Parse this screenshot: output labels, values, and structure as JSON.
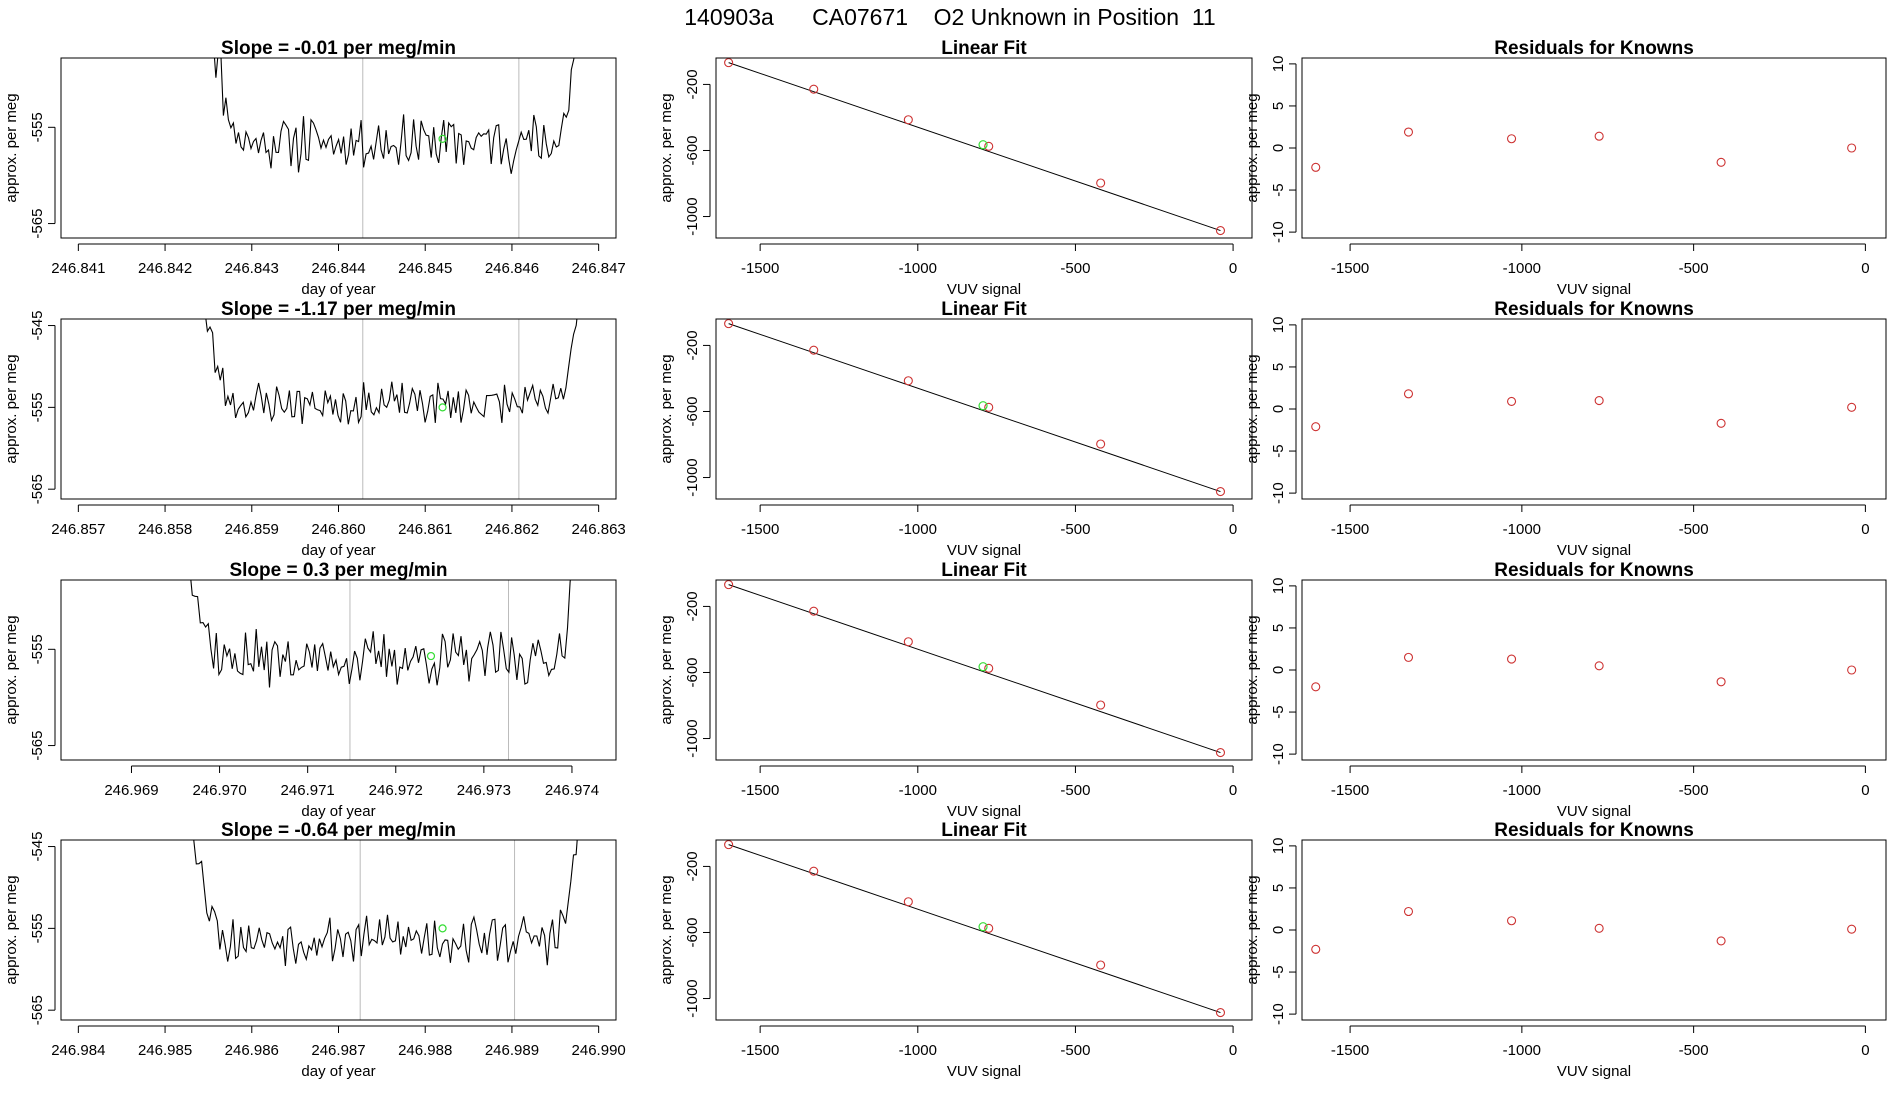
{
  "figure_title": "140903a      CA07671    O2 Unknown in Position  11",
  "colors": {
    "line": "#000000",
    "known_point": "#cd3333",
    "unknown_point": "#33dd33",
    "vline": "#bbbbbb"
  },
  "chart_data": [
    {
      "type": "line",
      "panel": "r1-time",
      "title": "Slope =  -0.01  per meg/min",
      "xlabel": "day of year",
      "ylabel": "approx. per meg",
      "xlim": [
        246.8408,
        246.8472
      ],
      "ylim": [
        -566.5,
        -547.8
      ],
      "xticks": [
        246.841,
        246.842,
        246.843,
        246.844,
        246.845,
        246.846,
        246.847
      ],
      "xtick_labels": [
        "246.841",
        "246.842",
        "246.843",
        "246.844",
        "246.845",
        "246.846",
        "246.847"
      ],
      "yticks": [
        -555,
        -565
      ],
      "ytick_labels": [
        "-555",
        "-565"
      ],
      "t_start": 246.8425,
      "t_end": 246.8468,
      "n_points": 150,
      "y_level": -556.5,
      "amplitude": 2.3,
      "seed": 11,
      "vlines": [
        246.84428,
        246.84608
      ],
      "unknown_point": {
        "x": 246.8452,
        "y": -556.2
      }
    },
    {
      "type": "scatter",
      "panel": "r1-fit",
      "title": "Linear Fit",
      "xlabel": "VUV signal",
      "ylabel": "approx. per meg",
      "xlim": [
        -1640,
        60
      ],
      "ylim": [
        -1130,
        -40
      ],
      "xticks": [
        -1500,
        -1000,
        -500,
        0
      ],
      "xtick_labels": [
        "-1500",
        "-1000",
        "-500",
        "0"
      ],
      "yticks": [
        -200,
        -600,
        -1000
      ],
      "ytick_labels": [
        "-200",
        "-600",
        "-1000"
      ],
      "knowns": {
        "x": [
          -1600,
          -1330,
          -1030,
          -775,
          -420,
          -40
        ],
        "y": [
          -68,
          -229,
          -414,
          -575,
          -797,
          -1085
        ]
      },
      "unknown_point": {
        "x": -793,
        "y": -565
      },
      "fit_line": {
        "x": [
          -1600,
          -40
        ],
        "y": [
          -68,
          -1085
        ]
      }
    },
    {
      "type": "scatter",
      "panel": "r1-resid",
      "title": "Residuals for Knowns",
      "xlabel": "VUV signal",
      "ylabel": "approx. per meg",
      "xlim": [
        -1640,
        60
      ],
      "ylim": [
        -10.7,
        10.7
      ],
      "xticks": [
        -1500,
        -1000,
        -500,
        0
      ],
      "xtick_labels": [
        "-1500",
        "-1000",
        "-500",
        "0"
      ],
      "yticks": [
        10,
        5,
        0,
        -5,
        -10
      ],
      "ytick_labels": [
        "10",
        "5",
        "0",
        "-5",
        "-10"
      ],
      "knowns": {
        "x": [
          -1600,
          -1330,
          -1030,
          -775,
          -420,
          -40
        ],
        "y": [
          -2.3,
          1.9,
          1.1,
          1.4,
          -1.7,
          0.0
        ]
      }
    },
    {
      "type": "line",
      "panel": "r2-time",
      "title": "Slope =  -1.17  per meg/min",
      "xlabel": "day of year",
      "ylabel": "approx. per meg",
      "xlim": [
        246.8568,
        246.8632
      ],
      "ylim": [
        -566.2,
        -544.2
      ],
      "xticks": [
        246.857,
        246.858,
        246.859,
        246.86,
        246.861,
        246.862,
        246.863
      ],
      "xtick_labels": [
        "246.857",
        "246.858",
        "246.859",
        "246.860",
        "246.861",
        "246.862",
        "246.863"
      ],
      "yticks": [
        -545,
        -555,
        -565
      ],
      "ytick_labels": [
        "-545",
        "-555",
        "-565"
      ],
      "t_start": 246.8584,
      "t_end": 246.8628,
      "n_points": 150,
      "y_level": -554.5,
      "amplitude": 2.0,
      "seed": 23,
      "vlines": [
        246.86028,
        246.86208
      ],
      "unknown_point": {
        "x": 246.8612,
        "y": -555.0
      }
    },
    {
      "type": "scatter",
      "panel": "r2-fit",
      "title": "Linear Fit",
      "xlabel": "VUV signal",
      "ylabel": "approx. per meg",
      "xlim": [
        -1640,
        60
      ],
      "ylim": [
        -1130,
        -40
      ],
      "xticks": [
        -1500,
        -1000,
        -500,
        0
      ],
      "xtick_labels": [
        "-1500",
        "-1000",
        "-500",
        "0"
      ],
      "yticks": [
        -200,
        -600,
        -1000
      ],
      "ytick_labels": [
        "-200",
        "-600",
        "-1000"
      ],
      "knowns": {
        "x": [
          -1600,
          -1330,
          -1030,
          -775,
          -420,
          -40
        ],
        "y": [
          -68,
          -229,
          -414,
          -575,
          -797,
          -1085
        ]
      },
      "unknown_point": {
        "x": -793,
        "y": -565
      },
      "fit_line": {
        "x": [
          -1600,
          -40
        ],
        "y": [
          -68,
          -1085
        ]
      }
    },
    {
      "type": "scatter",
      "panel": "r2-resid",
      "title": "Residuals for Knowns",
      "xlabel": "VUV signal",
      "ylabel": "approx. per meg",
      "xlim": [
        -1640,
        60
      ],
      "ylim": [
        -10.7,
        10.7
      ],
      "xticks": [
        -1500,
        -1000,
        -500,
        0
      ],
      "xtick_labels": [
        "-1500",
        "-1000",
        "-500",
        "0"
      ],
      "yticks": [
        10,
        5,
        0,
        -5,
        -10
      ],
      "ytick_labels": [
        "10",
        "5",
        "0",
        "-5",
        "-10"
      ],
      "knowns": {
        "x": [
          -1600,
          -1330,
          -1030,
          -775,
          -420,
          -40
        ],
        "y": [
          -2.1,
          1.8,
          0.9,
          1.0,
          -1.7,
          0.2
        ]
      }
    },
    {
      "type": "line",
      "panel": "r3-time",
      "title": "Slope =  0.3  per meg/min",
      "xlabel": "day of year",
      "ylabel": "approx. per meg",
      "xlim": [
        246.9682,
        246.9745
      ],
      "ylim": [
        -566.5,
        -547.8
      ],
      "xticks": [
        246.969,
        246.97,
        246.971,
        246.972,
        246.973,
        246.974
      ],
      "xtick_labels": [
        "246.969",
        "246.970",
        "246.971",
        "246.972",
        "246.973",
        "246.974"
      ],
      "yticks": [
        -555,
        -565
      ],
      "ytick_labels": [
        "-555",
        "-565"
      ],
      "t_start": 246.9696,
      "t_end": 246.9741,
      "n_points": 150,
      "y_level": -556.0,
      "amplitude": 2.2,
      "seed": 37,
      "vlines": [
        246.97148,
        246.97328
      ],
      "unknown_point": {
        "x": 246.9724,
        "y": -555.7
      }
    },
    {
      "type": "scatter",
      "panel": "r3-fit",
      "title": "Linear Fit",
      "xlabel": "VUV signal",
      "ylabel": "approx. per meg",
      "xlim": [
        -1640,
        60
      ],
      "ylim": [
        -1130,
        -40
      ],
      "xticks": [
        -1500,
        -1000,
        -500,
        0
      ],
      "xtick_labels": [
        "-1500",
        "-1000",
        "-500",
        "0"
      ],
      "yticks": [
        -200,
        -600,
        -1000
      ],
      "ytick_labels": [
        "-200",
        "-600",
        "-1000"
      ],
      "knowns": {
        "x": [
          -1600,
          -1330,
          -1030,
          -775,
          -420,
          -40
        ],
        "y": [
          -68,
          -229,
          -414,
          -575,
          -797,
          -1085
        ]
      },
      "unknown_point": {
        "x": -793,
        "y": -565
      },
      "fit_line": {
        "x": [
          -1600,
          -40
        ],
        "y": [
          -68,
          -1085
        ]
      }
    },
    {
      "type": "scatter",
      "panel": "r3-resid",
      "title": "Residuals for Knowns",
      "xlabel": "VUV signal",
      "ylabel": "approx. per meg",
      "xlim": [
        -1640,
        60
      ],
      "ylim": [
        -10.7,
        10.7
      ],
      "xticks": [
        -1500,
        -1000,
        -500,
        0
      ],
      "xtick_labels": [
        "-1500",
        "-1000",
        "-500",
        "0"
      ],
      "yticks": [
        10,
        5,
        0,
        -5,
        -10
      ],
      "ytick_labels": [
        "10",
        "5",
        "0",
        "-5",
        "-10"
      ],
      "knowns": {
        "x": [
          -1600,
          -1330,
          -1030,
          -775,
          -420,
          -40
        ],
        "y": [
          -2.0,
          1.5,
          1.3,
          0.5,
          -1.4,
          0.0
        ]
      }
    },
    {
      "type": "line",
      "panel": "r4-time",
      "title": "Slope =  -0.64  per meg/min",
      "xlabel": "day of year",
      "ylabel": "approx. per meg",
      "xlim": [
        246.9838,
        246.9902
      ],
      "ylim": [
        -566.2,
        -544.2
      ],
      "xticks": [
        246.984,
        246.985,
        246.986,
        246.987,
        246.988,
        246.989,
        246.99
      ],
      "xtick_labels": [
        "246.984",
        "246.985",
        "246.986",
        "246.987",
        "246.988",
        "246.989",
        "246.990"
      ],
      "yticks": [
        -545,
        -555,
        -565
      ],
      "ytick_labels": [
        "-545",
        "-555",
        "-565"
      ],
      "t_start": 246.9853,
      "t_end": 246.9898,
      "n_points": 150,
      "y_level": -556.3,
      "amplitude": 2.3,
      "seed": 53,
      "vlines": [
        246.98725,
        246.98903
      ],
      "unknown_point": {
        "x": 246.9882,
        "y": -555.0
      }
    },
    {
      "type": "scatter",
      "panel": "r4-fit",
      "title": "Linear Fit",
      "xlabel": "VUV signal",
      "ylabel": "approx. per meg",
      "xlim": [
        -1640,
        60
      ],
      "ylim": [
        -1130,
        -40
      ],
      "xticks": [
        -1500,
        -1000,
        -500,
        0
      ],
      "xtick_labels": [
        "-1500",
        "-1000",
        "-500",
        "0"
      ],
      "yticks": [
        -200,
        -600,
        -1000
      ],
      "ytick_labels": [
        "-200",
        "-600",
        "-1000"
      ],
      "knowns": {
        "x": [
          -1600,
          -1330,
          -1030,
          -775,
          -420,
          -40
        ],
        "y": [
          -68,
          -229,
          -414,
          -575,
          -797,
          -1085
        ]
      },
      "unknown_point": {
        "x": -793,
        "y": -565
      },
      "fit_line": {
        "x": [
          -1600,
          -40
        ],
        "y": [
          -68,
          -1085
        ]
      }
    },
    {
      "type": "scatter",
      "panel": "r4-resid",
      "title": "Residuals for Knowns",
      "xlabel": "VUV signal",
      "ylabel": "approx. per meg",
      "xlim": [
        -1640,
        60
      ],
      "ylim": [
        -10.7,
        10.7
      ],
      "xticks": [
        -1500,
        -1000,
        -500,
        0
      ],
      "xtick_labels": [
        "-1500",
        "-1000",
        "-500",
        "0"
      ],
      "yticks": [
        10,
        5,
        0,
        -5,
        -10
      ],
      "ytick_labels": [
        "10",
        "5",
        "0",
        "-5",
        "-10"
      ],
      "knowns": {
        "x": [
          -1600,
          -1330,
          -1030,
          -775,
          -420,
          -40
        ],
        "y": [
          -2.3,
          2.2,
          1.1,
          0.2,
          -1.3,
          0.1
        ]
      }
    }
  ]
}
